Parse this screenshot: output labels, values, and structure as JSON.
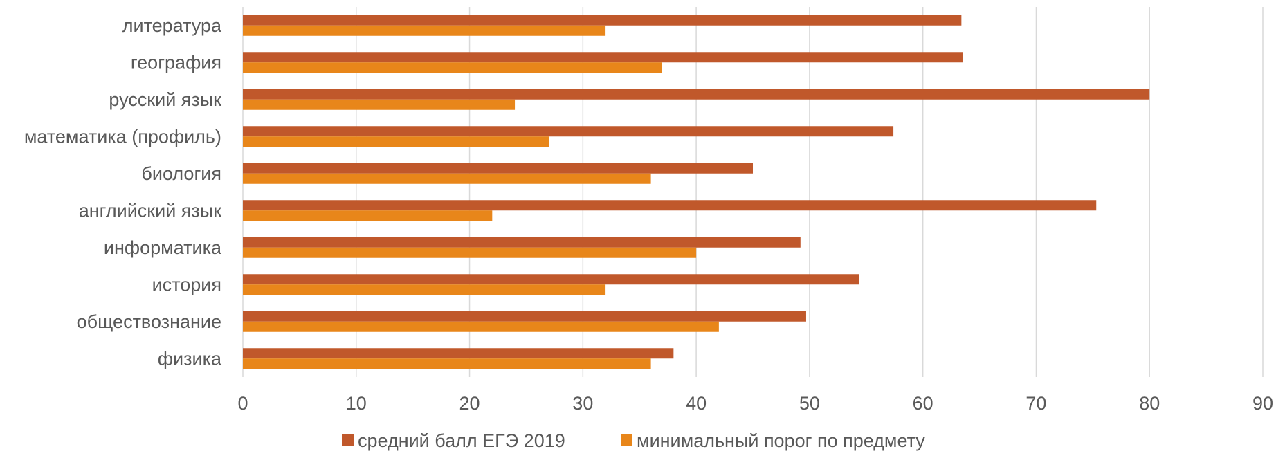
{
  "chart_data": {
    "type": "bar",
    "orientation": "horizontal",
    "categories": [
      "литература",
      "география",
      "русский язык",
      "математика (профиль)",
      "биология",
      "английский язык",
      "информатика",
      "история",
      "обществознание",
      "физика"
    ],
    "series": [
      {
        "name": "средний балл ЕГЭ 2019",
        "color": "#c0582b",
        "values": [
          63.4,
          63.5,
          80.0,
          57.4,
          45.0,
          75.3,
          49.2,
          54.4,
          49.7,
          38.0
        ]
      },
      {
        "name": "минимальный порог по предмету",
        "color": "#e8861a",
        "values": [
          32,
          37,
          24,
          27,
          36,
          22,
          40,
          32,
          42,
          36
        ]
      }
    ],
    "xlim": [
      0,
      90
    ],
    "x_ticks": [
      0,
      10,
      20,
      30,
      40,
      50,
      60,
      70,
      80,
      90
    ],
    "grid": "vertical",
    "legend": "bottom"
  }
}
